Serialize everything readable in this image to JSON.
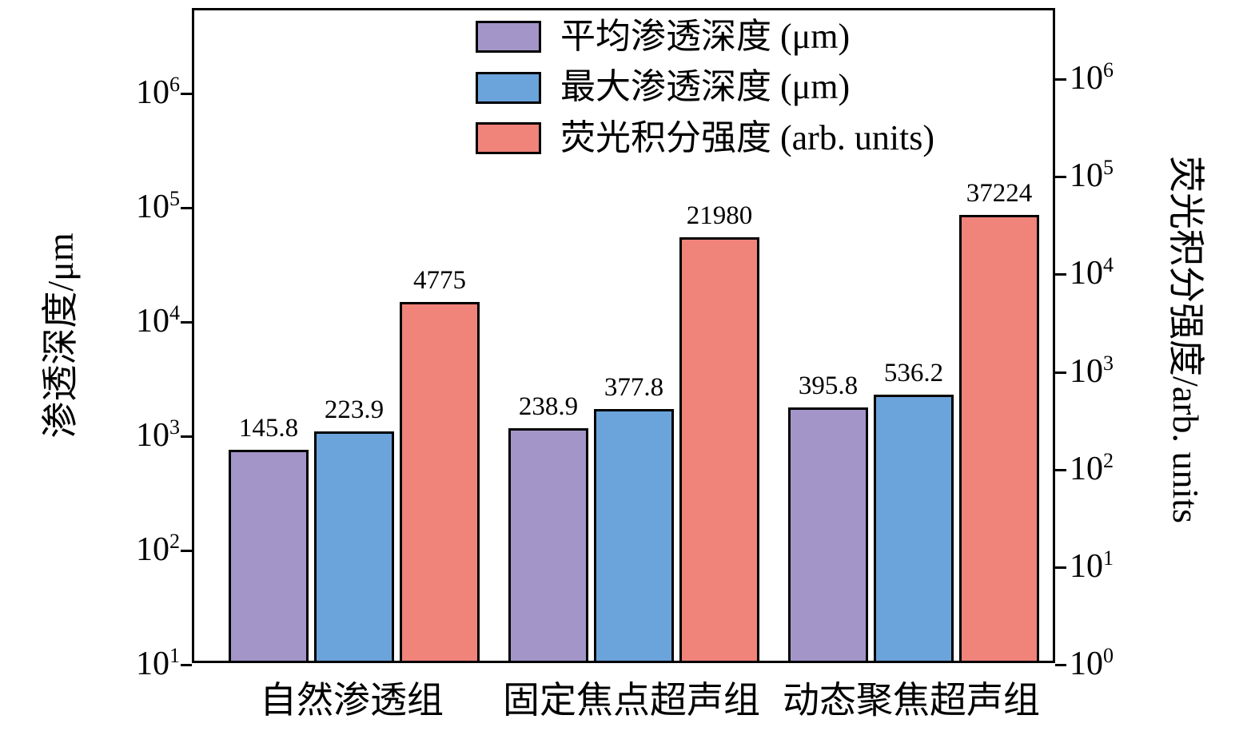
{
  "chart_data": {
    "type": "bar",
    "scale": "log",
    "grid": false,
    "legend_position": "top-center",
    "categories": [
      "自然渗透组",
      "固定焦点超声组",
      "动态聚焦超声组"
    ],
    "series": [
      {
        "name": "平均渗透深度 (μm)",
        "color": "#a495c8",
        "values": [
          145.8,
          238.9,
          395.8
        ]
      },
      {
        "name": "最大渗透深度 (μm)",
        "color": "#6ba3db",
        "values": [
          223.9,
          377.8,
          536.2
        ]
      },
      {
        "name": "荧光积分强度 (arb. units)",
        "color": "#f0837a",
        "values": [
          4775,
          21980,
          37224
        ]
      }
    ],
    "left_axis": {
      "label": "渗透深度/μm",
      "tick_exponents": [
        1,
        2,
        3,
        4,
        5,
        6
      ],
      "tick_labels": [
        "10¹",
        "10²",
        "10³",
        "10⁴",
        "10⁵",
        "10⁶"
      ],
      "range": [
        "1e1",
        "1e6"
      ]
    },
    "right_axis": {
      "label": "荧光积分强度/arb. units",
      "tick_exponents": [
        0,
        1,
        2,
        3,
        4,
        5,
        6
      ],
      "tick_labels": [
        "10⁰",
        "10¹",
        "10²",
        "10³",
        "10⁴",
        "10⁵",
        "10⁶"
      ],
      "range": [
        "1e0",
        "1e6"
      ]
    },
    "bar_value_labels": [
      [
        "145.8",
        "238.9",
        "395.8"
      ],
      [
        "223.9",
        "377.8",
        "536.2"
      ],
      [
        "4775",
        "21980",
        "37224"
      ]
    ]
  }
}
